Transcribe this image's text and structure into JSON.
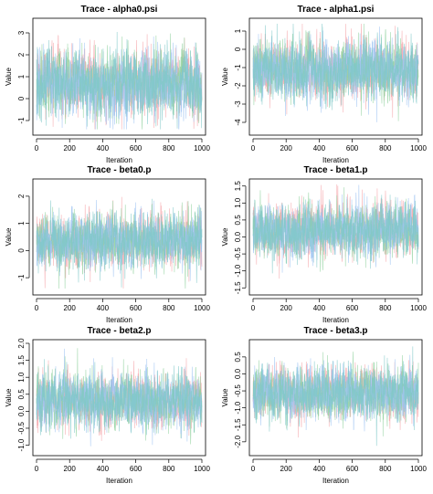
{
  "chart_data": [
    {
      "type": "line",
      "title": "Trace - alpha0.psi",
      "xlabel": "Iteration",
      "ylabel": "Value",
      "xlim": [
        0,
        1000
      ],
      "ylim": [
        -1.5,
        3.5
      ],
      "x_ticks": [
        "0",
        "200",
        "400",
        "600",
        "800",
        "1000"
      ],
      "y_ticks": [
        "-1",
        "0",
        "1",
        "2",
        "3"
      ],
      "x_tick_values": [
        0,
        200,
        400,
        600,
        800,
        1000
      ],
      "y_tick_values": [
        -1,
        0,
        1,
        2,
        3
      ],
      "y_tick_rotate": true,
      "trace": {
        "iterations": 1000,
        "center": 0.7,
        "spread": 0.75,
        "min": -1.4,
        "max": 3.4
      },
      "series": [
        {
          "color": "#f4a3a8"
        },
        {
          "color": "#8fd19e"
        },
        {
          "color": "#9ec3f2"
        },
        {
          "color": "#7fc8c8"
        }
      ]
    },
    {
      "type": "line",
      "title": "Trace - alpha1.psi",
      "xlabel": "Iteration",
      "ylabel": "Value",
      "xlim": [
        0,
        1000
      ],
      "ylim": [
        -4.5,
        1.5
      ],
      "x_ticks": [
        "0",
        "200",
        "400",
        "600",
        "800",
        "1000"
      ],
      "y_ticks": [
        "-4",
        "-3",
        "-2",
        "-1",
        "0",
        "1"
      ],
      "x_tick_values": [
        0,
        200,
        400,
        600,
        800,
        1000
      ],
      "y_tick_values": [
        -4,
        -3,
        -2,
        -1,
        0,
        1
      ],
      "y_tick_rotate": true,
      "trace": {
        "iterations": 1000,
        "center": -1.1,
        "spread": 0.8,
        "min": -4.3,
        "max": 1.4
      },
      "series": [
        {
          "color": "#f4a3a8"
        },
        {
          "color": "#8fd19e"
        },
        {
          "color": "#9ec3f2"
        },
        {
          "color": "#7fc8c8"
        }
      ]
    },
    {
      "type": "line",
      "title": "Trace - beta0.p",
      "xlabel": "Iteration",
      "ylabel": "Value",
      "xlim": [
        0,
        1000
      ],
      "ylim": [
        -1.5,
        2.5
      ],
      "x_ticks": [
        "0",
        "200",
        "400",
        "600",
        "800",
        "1000"
      ],
      "y_ticks": [
        "-1",
        "0",
        "1",
        "2"
      ],
      "x_tick_values": [
        0,
        200,
        400,
        600,
        800,
        1000
      ],
      "y_tick_values": [
        -1,
        0,
        1,
        2
      ],
      "y_tick_rotate": true,
      "trace": {
        "iterations": 1000,
        "center": 0.35,
        "spread": 0.5,
        "min": -1.4,
        "max": 2.5
      },
      "series": [
        {
          "color": "#f4a3a8"
        },
        {
          "color": "#8fd19e"
        },
        {
          "color": "#9ec3f2"
        },
        {
          "color": "#7fc8c8"
        }
      ]
    },
    {
      "type": "line",
      "title": "Trace - beta1.p",
      "xlabel": "Iteration",
      "ylabel": "Value",
      "xlim": [
        0,
        1000
      ],
      "ylim": [
        -1.6,
        1.6
      ],
      "x_ticks": [
        "0",
        "200",
        "400",
        "600",
        "800",
        "1000"
      ],
      "y_ticks": [
        "-1.5",
        "-1.0",
        "-0.5",
        "0.0",
        "0.5",
        "1.0",
        "1.5"
      ],
      "x_tick_values": [
        0,
        200,
        400,
        600,
        800,
        1000
      ],
      "y_tick_values": [
        -1.5,
        -1.0,
        -0.5,
        0.0,
        0.5,
        1.0,
        1.5
      ],
      "y_tick_rotate": true,
      "trace": {
        "iterations": 1000,
        "center": 0.2,
        "spread": 0.38,
        "min": -1.55,
        "max": 1.55
      },
      "series": [
        {
          "color": "#f4a3a8"
        },
        {
          "color": "#8fd19e"
        },
        {
          "color": "#9ec3f2"
        },
        {
          "color": "#7fc8c8"
        }
      ]
    },
    {
      "type": "line",
      "title": "Trace - beta2.p",
      "xlabel": "Iteration",
      "ylabel": "Value",
      "xlim": [
        0,
        1000
      ],
      "ylim": [
        -1.2,
        2.0
      ],
      "x_ticks": [
        "0",
        "200",
        "400",
        "600",
        "800",
        "1000"
      ],
      "y_ticks": [
        "-1.0",
        "-0.5",
        "0.0",
        "0.5",
        "1.0",
        "1.5",
        "2.0"
      ],
      "x_tick_values": [
        0,
        200,
        400,
        600,
        800,
        1000
      ],
      "y_tick_values": [
        -1.0,
        -0.5,
        0.0,
        0.5,
        1.0,
        1.5,
        2.0
      ],
      "y_tick_rotate": true,
      "trace": {
        "iterations": 1000,
        "center": 0.3,
        "spread": 0.4,
        "min": -1.15,
        "max": 1.95
      },
      "series": [
        {
          "color": "#f4a3a8"
        },
        {
          "color": "#8fd19e"
        },
        {
          "color": "#9ec3f2"
        },
        {
          "color": "#7fc8c8"
        }
      ]
    },
    {
      "type": "line",
      "title": "Trace - beta3.p",
      "xlabel": "Iteration",
      "ylabel": "Value",
      "xlim": [
        0,
        1000
      ],
      "ylim": [
        -2.3,
        0.9
      ],
      "x_ticks": [
        "0",
        "200",
        "400",
        "600",
        "800",
        "1000"
      ],
      "y_ticks": [
        "-2.0",
        "-1.5",
        "-1.0",
        "-0.5",
        "0.0",
        "0.5"
      ],
      "x_tick_values": [
        0,
        200,
        400,
        600,
        800,
        1000
      ],
      "y_tick_values": [
        -2.0,
        -1.5,
        -1.0,
        -0.5,
        0.0,
        0.5
      ],
      "y_tick_rotate": true,
      "trace": {
        "iterations": 1000,
        "center": -0.55,
        "spread": 0.38,
        "min": -2.2,
        "max": 0.85
      },
      "series": [
        {
          "color": "#f4a3a8"
        },
        {
          "color": "#8fd19e"
        },
        {
          "color": "#9ec3f2"
        },
        {
          "color": "#7fc8c8"
        }
      ]
    }
  ]
}
